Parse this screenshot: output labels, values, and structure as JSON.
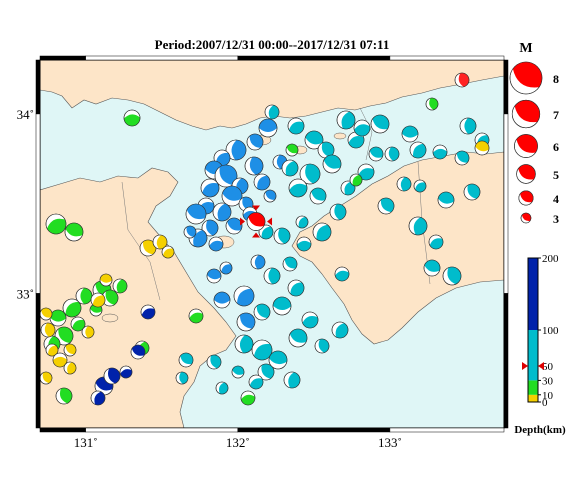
{
  "title": "Period:2007/12/31 00:00--2017/12/31 07:11",
  "map": {
    "lon_range": [
      130.7,
      133.75
    ],
    "lat_range": [
      32.25,
      34.3
    ],
    "x_ticks": [
      {
        "value": 131,
        "label": "131˚"
      },
      {
        "value": 132,
        "label": "132˚"
      },
      {
        "value": 133,
        "label": "133˚"
      }
    ],
    "y_ticks": [
      {
        "value": 33,
        "label": "33˚"
      },
      {
        "value": 34,
        "label": "34˚"
      }
    ],
    "colors": {
      "sea": "#dff6f6",
      "land": "#fde5c8",
      "coast": "#555555"
    },
    "star_event": {
      "lon": 132.12,
      "lat": 33.4,
      "depth_color": "#ff0000"
    }
  },
  "magnitude_legend": {
    "title": "M",
    "items": [
      {
        "label": "8",
        "mag": 8
      },
      {
        "label": "7",
        "mag": 7
      },
      {
        "label": "6",
        "mag": 6
      },
      {
        "label": "5",
        "mag": 5
      },
      {
        "label": "4",
        "mag": 4
      },
      {
        "label": "3",
        "mag": 3
      }
    ]
  },
  "depth_scale": {
    "title": "Depth(km)",
    "max": 200,
    "ticks": [
      {
        "value": 200,
        "label": "200"
      },
      {
        "value": 100,
        "label": "100"
      },
      {
        "value": 50,
        "label": "50"
      },
      {
        "value": 30,
        "label": "30"
      },
      {
        "value": 10,
        "label": "10"
      },
      {
        "value": 0,
        "label": "0"
      }
    ],
    "bands": [
      {
        "from": 0,
        "to": 10,
        "color": "#f5d000"
      },
      {
        "from": 10,
        "to": 30,
        "color": "#22dd22"
      },
      {
        "from": 30,
        "to": 100,
        "color": "#00bccc"
      },
      {
        "from": 100,
        "to": 200,
        "color": "#0022aa"
      }
    ],
    "marker_value": 50
  }
}
